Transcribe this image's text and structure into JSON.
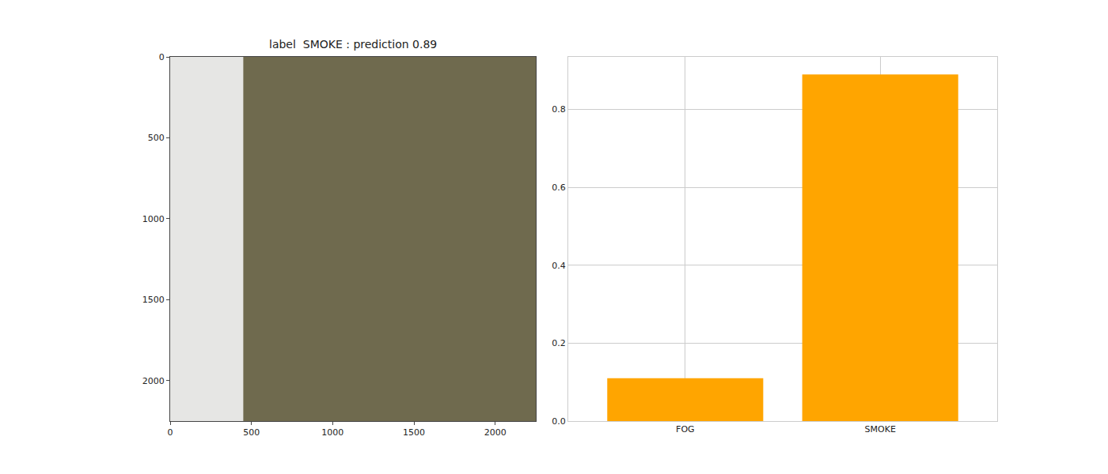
{
  "chart_data": [
    {
      "type": "image",
      "title": "label  SMOKE : prediction 0.89",
      "xlim": [
        0,
        2250
      ],
      "ylim": [
        2250,
        0
      ],
      "xticks": [
        0,
        500,
        1000,
        1500,
        2000
      ],
      "yticks": [
        0,
        500,
        1000,
        1500,
        2000
      ],
      "grid": false
    },
    {
      "type": "bar",
      "categories": [
        "FOG",
        "SMOKE"
      ],
      "values": [
        0.11,
        0.89
      ],
      "color": "#ffa500",
      "ylim": [
        0,
        0.935
      ],
      "yticks": [
        {
          "value": 0,
          "label": "0.0"
        },
        {
          "value": 0.2,
          "label": "0.2"
        },
        {
          "value": 0.4,
          "label": "0.4"
        },
        {
          "value": 0.6,
          "label": "0.6"
        },
        {
          "value": 0.8,
          "label": "0.8"
        }
      ],
      "grid": true
    }
  ]
}
